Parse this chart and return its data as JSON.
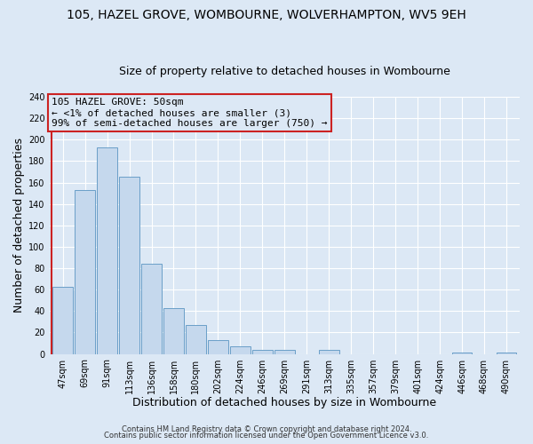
{
  "title": "105, HAZEL GROVE, WOMBOURNE, WOLVERHAMPTON, WV5 9EH",
  "subtitle": "Size of property relative to detached houses in Wombourne",
  "xlabel": "Distribution of detached houses by size in Wombourne",
  "ylabel": "Number of detached properties",
  "bar_labels": [
    "47sqm",
    "69sqm",
    "91sqm",
    "113sqm",
    "136sqm",
    "158sqm",
    "180sqm",
    "202sqm",
    "224sqm",
    "246sqm",
    "269sqm",
    "291sqm",
    "313sqm",
    "335sqm",
    "357sqm",
    "379sqm",
    "401sqm",
    "424sqm",
    "446sqm",
    "468sqm",
    "490sqm"
  ],
  "bar_values": [
    63,
    153,
    193,
    165,
    84,
    43,
    27,
    13,
    7,
    4,
    4,
    0,
    4,
    0,
    0,
    0,
    0,
    0,
    1,
    0,
    1
  ],
  "bar_color": "#c5d8ed",
  "bar_edge_color": "#6a9fc8",
  "annotation_title": "105 HAZEL GROVE: 50sqm",
  "annotation_line1": "← <1% of detached houses are smaller (3)",
  "annotation_line2": "99% of semi-detached houses are larger (750) →",
  "annotation_box_facecolor": "#dce8f5",
  "annotation_box_edgecolor": "#cc2222",
  "red_vline_color": "#cc2222",
  "ylim": [
    0,
    240
  ],
  "yticks": [
    0,
    20,
    40,
    60,
    80,
    100,
    120,
    140,
    160,
    180,
    200,
    220,
    240
  ],
  "footer_line1": "Contains HM Land Registry data © Crown copyright and database right 2024.",
  "footer_line2": "Contains public sector information licensed under the Open Government Licence v3.0.",
  "bg_color": "#dce8f5",
  "grid_color": "#ffffff",
  "title_fontsize": 10,
  "subtitle_fontsize": 9,
  "xlabel_fontsize": 9,
  "ylabel_fontsize": 9,
  "tick_fontsize": 7,
  "annotation_fontsize": 8,
  "footer_fontsize": 6
}
